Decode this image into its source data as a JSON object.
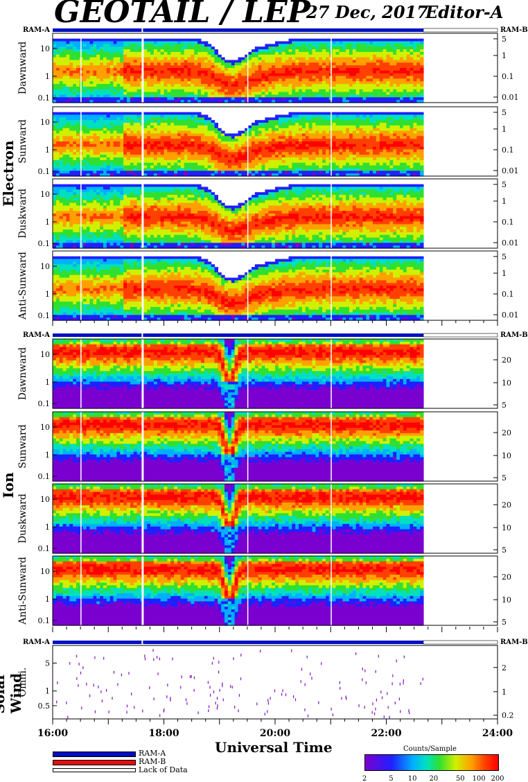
{
  "header": {
    "title": "GEOTAIL / LEP",
    "date": "27 Dec, 2017",
    "editor": "Editor-A"
  },
  "ram_a_label": "RAM-A",
  "ram_b_label": "RAM-B",
  "sections": [
    {
      "name": "Electron",
      "panels": [
        "Dawnward",
        "Sunward",
        "Duskward",
        "Anti-Sunward"
      ]
    },
    {
      "name": "Ion",
      "panels": [
        "Dawnward",
        "Sunward",
        "Duskward",
        "Anti-Sunward"
      ]
    },
    {
      "name": "Solar Wind",
      "panels": [
        "Omni."
      ]
    }
  ],
  "axis": {
    "left_ticks_main": [
      "10",
      "1",
      "0.1"
    ],
    "left_ticks_sw": [
      "5",
      "1",
      "0.5"
    ],
    "right_ticks_electron": [
      "5",
      "1",
      "0.1",
      "0.01"
    ],
    "right_ticks_ion": [
      "20",
      "10",
      "5"
    ],
    "right_ticks_sw": [
      "2",
      "1",
      "0.2"
    ],
    "x_ticks": [
      "16:00",
      "18:00",
      "20:00",
      "22:00",
      "24:00"
    ],
    "xlabel": "Universal Time"
  },
  "legend": {
    "ram_a": "RAM-A",
    "ram_b": "RAM-B",
    "lack": "Lack of Data",
    "colorbar_title": "Counts/Sample",
    "colorbar_ticks": [
      "2",
      "5",
      "10",
      "20",
      "50",
      "100",
      "200"
    ]
  },
  "colors": {
    "ram_a": "#0010c0",
    "ram_b": "#e01010",
    "scale": [
      "#7a00d0",
      "#2020ff",
      "#00b0ff",
      "#00e0c0",
      "#30e030",
      "#d0f000",
      "#ffa000",
      "#ff4000",
      "#ff0000"
    ]
  },
  "chart_data": {
    "type": "heatmap",
    "title": "GEOTAIL / LEP",
    "xlabel": "Universal Time",
    "x_range": [
      "16:00",
      "24:00"
    ],
    "data_end": "22:40",
    "data_gaps": [
      "16:30",
      "17:35",
      "19:30",
      "21:00"
    ],
    "feature": "energy-band dip near 19:10-19:25 UT",
    "colorbar": {
      "label": "Counts/Sample",
      "min": 2,
      "max": 200,
      "scale": "log"
    }
  }
}
